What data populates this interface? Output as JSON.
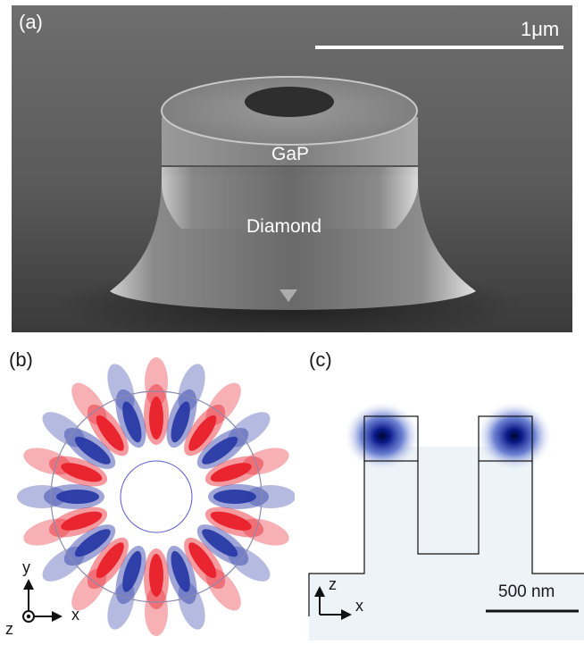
{
  "figure": {
    "panel_a": {
      "label": "(a)",
      "scale_bar": "1μm",
      "layer_top": "GaP",
      "layer_bottom": "Diamond"
    },
    "panel_b": {
      "label": "(b)",
      "axis_y": "y",
      "axis_x": "x",
      "axis_z": "z",
      "lobes_per_color": 10,
      "colors": {
        "positive": "#e8202a",
        "negative": "#2a3aa6"
      }
    },
    "panel_c": {
      "label": "(c)",
      "axis_z": "z",
      "axis_x": "x",
      "scale_bar": "500 nm",
      "field_color": "#0a1a8a"
    }
  }
}
